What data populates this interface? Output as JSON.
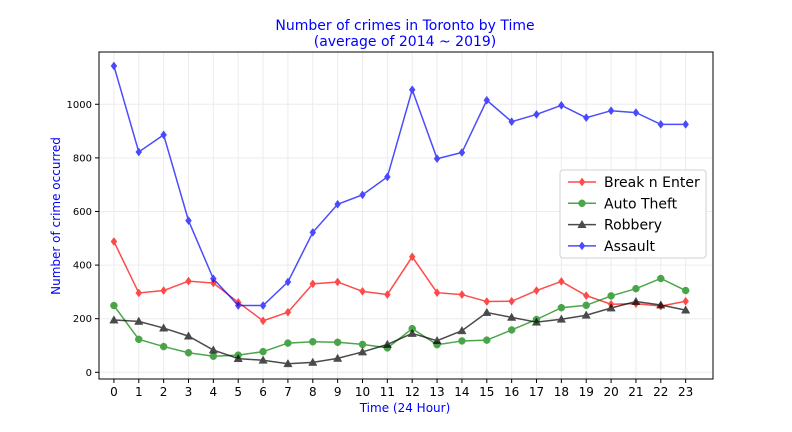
{
  "chart_data": {
    "type": "line",
    "title": "Number of crimes in Toronto by Time",
    "subtitle": "(average of 2014 ~ 2019)",
    "xlabel": "Time (24 Hour)",
    "ylabel": "Number of crime occurred",
    "x": [
      0,
      1,
      2,
      3,
      4,
      5,
      6,
      7,
      8,
      9,
      10,
      11,
      12,
      13,
      14,
      15,
      16,
      17,
      18,
      19,
      20,
      21,
      22,
      23
    ],
    "x_ticks": [
      "0",
      "1",
      "2",
      "3",
      "4",
      "5",
      "6",
      "7",
      "8",
      "9",
      "10",
      "11",
      "12",
      "13",
      "14",
      "15",
      "16",
      "17",
      "18",
      "19",
      "20",
      "21",
      "22",
      "23"
    ],
    "y_ticks": [
      0,
      200,
      400,
      600,
      800,
      1000
    ],
    "ylim": [
      -25,
      1195
    ],
    "xlim": [
      -0.6,
      24.1
    ],
    "grid": true,
    "legend_position": "center-right",
    "series": [
      {
        "name": "Break n Enter",
        "marker": "diamond",
        "color": "#ff0000",
        "values": [
          488,
          296,
          305,
          340,
          333,
          261,
          192,
          224,
          330,
          337,
          302,
          290,
          431,
          297,
          290,
          264,
          265,
          305,
          339,
          286,
          254,
          256,
          247,
          265
        ]
      },
      {
        "name": "Auto Theft",
        "marker": "circle",
        "color": "#008000",
        "values": [
          249,
          123,
          96,
          73,
          60,
          64,
          77,
          109,
          114,
          112,
          104,
          91,
          163,
          103,
          117,
          120,
          158,
          197,
          241,
          250,
          285,
          312,
          350,
          305
        ]
      },
      {
        "name": "Robbery",
        "marker": "triangle",
        "color": "#000000",
        "values": [
          195,
          190,
          165,
          135,
          83,
          51,
          45,
          32,
          37,
          52,
          76,
          104,
          145,
          118,
          155,
          223,
          205,
          187,
          198,
          213,
          240,
          264,
          251,
          232
        ]
      },
      {
        "name": "Assault",
        "marker": "diamond",
        "color": "#0000ff",
        "values": [
          1143,
          822,
          886,
          566,
          349,
          249,
          249,
          337,
          522,
          627,
          662,
          729,
          1054,
          797,
          820,
          1015,
          935,
          962,
          996,
          950,
          976,
          969,
          925,
          925
        ]
      }
    ]
  }
}
